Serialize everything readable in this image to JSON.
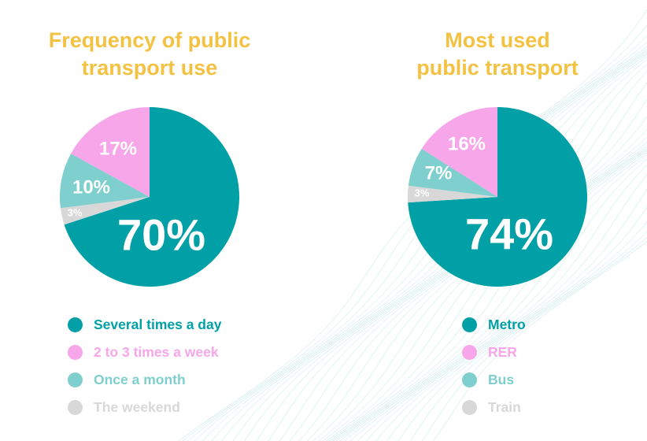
{
  "colors": {
    "title": "#f3c242",
    "teal": "#00a0a6",
    "pink": "#f7a6ea",
    "light_teal": "#7ecfce",
    "grey": "#d8d8d8",
    "wave": "#cfe9ea"
  },
  "chart_data": [
    {
      "type": "pie",
      "title": "Frequency of public transport use",
      "title_lines": [
        "Frequency of public",
        "transport use"
      ],
      "slices": [
        {
          "label": "Several times a day",
          "value": 70,
          "value_label": "70%",
          "color": "#00a0a6"
        },
        {
          "label": "The weekend",
          "value": 3,
          "value_label": "3%",
          "color": "#d8d8d8"
        },
        {
          "label": "Once a month",
          "value": 10,
          "value_label": "10%",
          "color": "#7ecfce"
        },
        {
          "label": "2 to 3 times a week",
          "value": 17,
          "value_label": "17%",
          "color": "#f7a6ea"
        }
      ],
      "legend": [
        {
          "label": "Several times a day",
          "color": "#00a0a6"
        },
        {
          "label": "2 to 3 times a week",
          "color": "#f7a6ea"
        },
        {
          "label": "Once a month",
          "color": "#7ecfce"
        },
        {
          "label": "The weekend",
          "color": "#d8d8d8"
        }
      ]
    },
    {
      "type": "pie",
      "title": "Most used public transport",
      "title_lines": [
        "Most used",
        "public transport"
      ],
      "slices": [
        {
          "label": "Metro",
          "value": 74,
          "value_label": "74%",
          "color": "#00a0a6"
        },
        {
          "label": "Train",
          "value": 3,
          "value_label": "3%",
          "color": "#d8d8d8"
        },
        {
          "label": "Bus",
          "value": 7,
          "value_label": "7%",
          "color": "#7ecfce"
        },
        {
          "label": "RER",
          "value": 16,
          "value_label": "16%",
          "color": "#f7a6ea"
        }
      ],
      "legend": [
        {
          "label": "Metro",
          "color": "#00a0a6"
        },
        {
          "label": "RER",
          "color": "#f7a6ea"
        },
        {
          "label": "Bus",
          "color": "#7ecfce"
        },
        {
          "label": "Train",
          "color": "#d8d8d8"
        }
      ]
    }
  ]
}
